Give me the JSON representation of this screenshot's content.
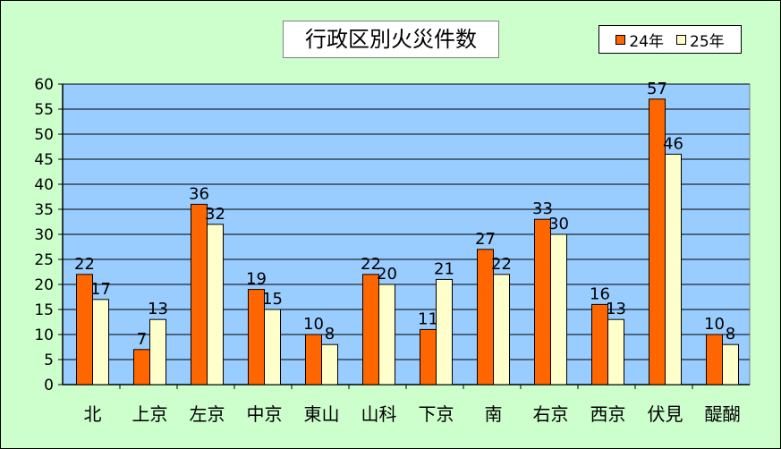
{
  "chart_data": {
    "type": "bar",
    "title": "行政区別火災件数",
    "categories": [
      "北",
      "上京",
      "左京",
      "中京",
      "東山",
      "山科",
      "下京",
      "南",
      "右京",
      "西京",
      "伏見",
      "醍醐"
    ],
    "series": [
      {
        "name": "24年",
        "color": "#ff6600",
        "values": [
          22,
          7,
          36,
          19,
          10,
          22,
          11,
          27,
          33,
          16,
          57,
          10
        ]
      },
      {
        "name": "25年",
        "color": "#ffffcc",
        "values": [
          17,
          13,
          32,
          15,
          8,
          20,
          21,
          22,
          30,
          13,
          46,
          8
        ]
      }
    ],
    "ylim": [
      0,
      60
    ],
    "yticks": [
      0,
      5,
      10,
      15,
      20,
      25,
      30,
      35,
      40,
      45,
      50,
      55,
      60
    ],
    "grid": true,
    "legend": "top-right",
    "colors": {
      "plot_background": "#99ccff",
      "page_background": "#ccffcc",
      "gridline": "#000000"
    }
  }
}
